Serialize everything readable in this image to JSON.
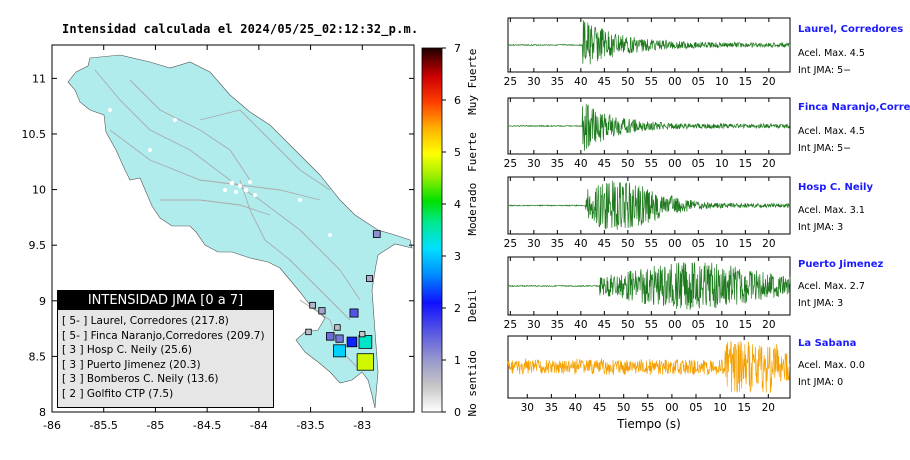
{
  "map": {
    "title": "Intensidad calculada el 2024/05/25_02:12:32_p.m.",
    "x_ticks": [
      "-86",
      "-85.5",
      "-85",
      "-84.5",
      "-84",
      "-83.5",
      "-83"
    ],
    "y_ticks": [
      "8",
      "8.5",
      "9",
      "9.5",
      "10",
      "10.5",
      "11"
    ],
    "xlim": [
      -86,
      -82.5
    ],
    "ylim": [
      8,
      11.3
    ],
    "legend": {
      "title": "INTENSIDAD JMA [0 a 7]",
      "items": [
        "[ 5- ]  Laurel, Corredores (217.8)",
        "[ 5- ]  Finca Naranjo,Corredores (209.7)",
        "[ 3 ]  Hosp C. Neily (25.6)",
        "[ 3 ]  Puerto Jimenez (20.3)",
        "[ 3 ]  Bomberos C. Neily (13.6)",
        "[ 2 ]  Golfito CTP (7.5)"
      ]
    },
    "stations": [
      {
        "lon": -82.97,
        "lat": 8.45,
        "intensity": 4.8
      },
      {
        "lon": -83.22,
        "lat": 8.55,
        "intensity": 3.1
      },
      {
        "lon": -83.1,
        "lat": 8.63,
        "intensity": 2.2
      },
      {
        "lon": -82.97,
        "lat": 8.63,
        "intensity": 3.4
      },
      {
        "lon": -83.08,
        "lat": 8.89,
        "intensity": 1.6
      },
      {
        "lon": -83.31,
        "lat": 8.68,
        "intensity": 1.4
      },
      {
        "lon": -83.22,
        "lat": 8.66,
        "intensity": 1.3
      },
      {
        "lon": -83.39,
        "lat": 8.91,
        "intensity": 0.9
      },
      {
        "lon": -83.48,
        "lat": 8.96,
        "intensity": 0.7
      },
      {
        "lon": -83.52,
        "lat": 8.72,
        "intensity": 0.6
      },
      {
        "lon": -82.93,
        "lat": 9.2,
        "intensity": 0.8
      },
      {
        "lon": -83.24,
        "lat": 8.76,
        "intensity": 0.6
      },
      {
        "lon": -82.86,
        "lat": 9.6,
        "intensity": 1.1
      },
      {
        "lon": -83.0,
        "lat": 8.7,
        "intensity": 0.5
      }
    ]
  },
  "colorbar": {
    "ticks": [
      "0",
      "1",
      "2",
      "3",
      "4",
      "5",
      "6",
      "7"
    ],
    "labels": [
      "No sentido",
      "Debil",
      "Moderado",
      "Fuerte",
      "Muy Fuerte"
    ]
  },
  "traces": {
    "xlabel": "Tiempo (s)",
    "x_ticks_a": [
      "25",
      "30",
      "35",
      "40",
      "45",
      "50",
      "55",
      "00",
      "05",
      "10",
      "15",
      "20"
    ],
    "x_ticks_b": [
      "30",
      "35",
      "40",
      "45",
      "50",
      "55",
      "00",
      "05",
      "10",
      "15",
      "20"
    ],
    "rows": [
      {
        "name": "Laurel, Corredores",
        "accel": "Acel. Max. 4.5",
        "jma": "Int JMA: 5−",
        "color": "#1e7a1e",
        "onset": 40.3,
        "peak": 1.0,
        "decay": 5
      },
      {
        "name": "Finca Naranjo,Corredor",
        "accel": "Acel. Max. 4.5",
        "jma": "Int JMA: 5−",
        "color": "#1e7a1e",
        "onset": 40.2,
        "peak": 1.0,
        "decay": 4
      },
      {
        "name": "Hosp C. Neily",
        "accel": "Acel. Max. 3.1",
        "jma": "Int JMA: 3",
        "color": "#1e7a1e",
        "onset": 41.0,
        "peak": 0.95,
        "decay": 10
      },
      {
        "name": "Puerto Jimenez",
        "accel": "Acel. Max. 2.7",
        "jma": "Int JMA: 3",
        "color": "#1e7a1e",
        "onset": 44.0,
        "peak": 0.85,
        "decay": 22
      },
      {
        "name": "La Sabana",
        "accel": "Acel. Max. 0.0",
        "jma": "Int JMA: 0",
        "color": "#f5a000",
        "onset": 0,
        "peak": 0.3,
        "decay": 0
      }
    ]
  },
  "chart_data": {
    "type": "scatter",
    "title": "Intensidad calculada el 2024/05/25_02:12:32_p.m.",
    "xlim": [
      -86,
      -82.5
    ],
    "ylim": [
      8,
      11.3
    ],
    "colorbar_range": [
      0,
      7
    ],
    "series": [
      {
        "name": "Laurel, Corredores",
        "value": 217.8,
        "jma": "5-"
      },
      {
        "name": "Finca Naranjo,Corredores",
        "value": 209.7,
        "jma": "5-"
      },
      {
        "name": "Hosp C. Neily",
        "value": 25.6,
        "jma": "3"
      },
      {
        "name": "Puerto Jimenez",
        "value": 20.3,
        "jma": "3"
      },
      {
        "name": "Bomberos C. Neily",
        "value": 13.6,
        "jma": "3"
      },
      {
        "name": "Golfito CTP",
        "value": 7.5,
        "jma": "2"
      }
    ]
  }
}
